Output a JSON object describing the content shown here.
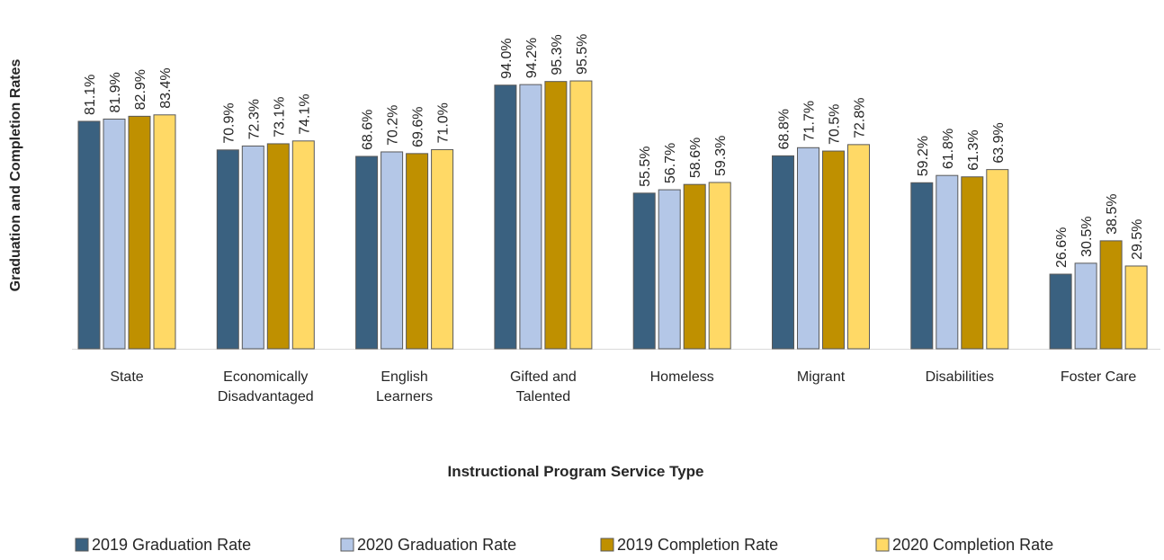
{
  "chart_data": {
    "type": "bar",
    "x_label": "Instructional Program Service Type",
    "y_label": "Graduation and Completion Rates",
    "categories": [
      "State",
      "Economically Disadvantaged",
      "English Learners",
      "Gifted and Talented",
      "Homeless",
      "Migrant",
      "Disabilities",
      "Foster Care"
    ],
    "series": [
      {
        "name": "2019 Graduation Rate",
        "color": "#3a6180",
        "values": [
          81.1,
          70.9,
          68.6,
          94.0,
          55.5,
          68.8,
          59.2,
          26.6
        ],
        "value_labels": [
          "81.1%",
          "70.9%",
          "68.6%",
          "94.0%",
          "55.5%",
          "68.8%",
          "59.2%",
          "26.6%"
        ]
      },
      {
        "name": "2020 Graduation Rate",
        "color": "#b4c7e7",
        "values": [
          81.9,
          72.3,
          70.2,
          94.2,
          56.7,
          71.7,
          61.8,
          30.5
        ],
        "value_labels": [
          "81.9%",
          "72.3%",
          "70.2%",
          "94.2%",
          "56.7%",
          "71.7%",
          "61.8%",
          "30.5%"
        ]
      },
      {
        "name": "2019 Completion Rate",
        "color": "#bf9000",
        "values": [
          82.9,
          73.1,
          69.6,
          95.3,
          58.6,
          70.5,
          61.3,
          38.5
        ],
        "value_labels": [
          "82.9%",
          "73.1%",
          "69.6%",
          "95.3%",
          "58.6%",
          "70.5%",
          "61.3%",
          "38.5%"
        ]
      },
      {
        "name": "2020 Completion Rate",
        "color": "#ffd966",
        "values": [
          83.4,
          74.1,
          71.0,
          95.5,
          59.3,
          72.8,
          63.9,
          29.5
        ],
        "value_labels": [
          "83.4%",
          "74.1%",
          "71.0%",
          "95.5%",
          "59.3%",
          "72.8%",
          "63.9%",
          "29.5%"
        ]
      }
    ],
    "legend": "bottom"
  }
}
